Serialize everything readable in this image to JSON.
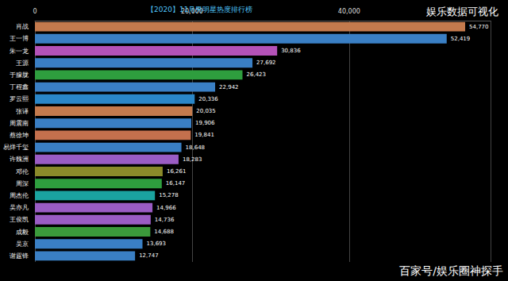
{
  "chart_data": {
    "type": "bar",
    "orientation": "horizontal",
    "title": "【2020】11月男明星热度排行榜",
    "annotations": [
      "娱乐数据可视化",
      "百家号/娱乐圈神探手"
    ],
    "categories": [
      "肖战",
      "王一博",
      "朱一龙",
      "王源",
      "于朦胧",
      "丁程鑫",
      "罗云熙",
      "张译",
      "周震南",
      "蔡徐坤",
      "易烊千玺",
      "许魏洲",
      "邓伦",
      "周深",
      "周杰伦",
      "吴亦凡",
      "王俊凯",
      "成毅",
      "吴京",
      "谢霆锋"
    ],
    "values": [
      54770,
      52419,
      30836,
      27692,
      26423,
      22942,
      20336,
      20035,
      19906,
      19841,
      18648,
      18283,
      16261,
      16147,
      15278,
      14966,
      14736,
      14688,
      13693,
      12747
    ],
    "value_labels": [
      "54,770",
      "52,419",
      "30,836",
      "27,692",
      "26,423",
      "22,942",
      "20,336",
      "20,035",
      "19,906",
      "19,841",
      "18,648",
      "18,283",
      "16,261",
      "16,147",
      "15,278",
      "14,966",
      "14,736",
      "14,688",
      "13,693",
      "12,747"
    ],
    "colors": [
      "#c47a4d",
      "#3a7fc4",
      "#b452b8",
      "#3a7fc4",
      "#2e9e3e",
      "#3a7fc4",
      "#2a86c8",
      "#c47a4d",
      "#3a7fc4",
      "#c4704d",
      "#3a7fc4",
      "#9a5cc4",
      "#8a8a2a",
      "#2e9e3e",
      "#1aa3a0",
      "#9a5cc4",
      "#9a5cc4",
      "#3b9a3b",
      "#3a7fc4",
      "#3a7fc4"
    ],
    "xlim": [
      0,
      58000
    ],
    "xticks": [
      0,
      {
        "value": 20000,
        "label": "20,000"
      },
      {
        "value": 40000,
        "label": "40,000"
      }
    ],
    "grid": true,
    "data_labels": true
  }
}
